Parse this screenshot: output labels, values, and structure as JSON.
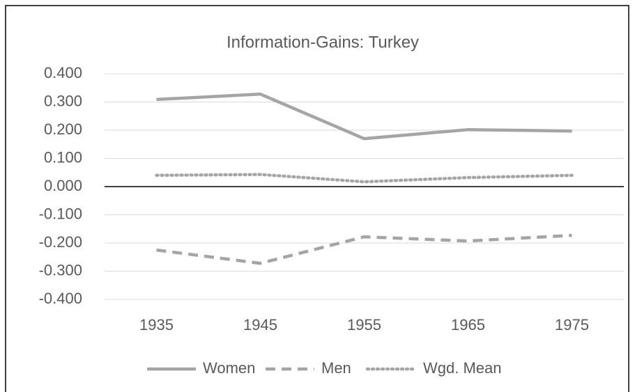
{
  "chart_data": {
    "type": "line",
    "title": "Information-Gains: Turkey",
    "categories": [
      "1935",
      "1945",
      "1955",
      "1965",
      "1975"
    ],
    "series": [
      {
        "name": "Women",
        "color": "#a5a5a5",
        "style": "solid",
        "values": [
          0.309,
          0.328,
          0.17,
          0.202,
          0.197
        ]
      },
      {
        "name": "Men",
        "color": "#a5a5a5",
        "style": "dashed",
        "values": [
          -0.225,
          -0.272,
          -0.178,
          -0.193,
          -0.173
        ]
      },
      {
        "name": "Wgd. Mean",
        "color": "#a5a5a5",
        "style": "dotted",
        "values": [
          0.04,
          0.043,
          0.017,
          0.032,
          0.04
        ]
      }
    ],
    "ylim": [
      -0.4,
      0.4
    ],
    "yticks": [
      {
        "value": -0.4,
        "label": "-0.400"
      },
      {
        "value": -0.3,
        "label": "-0.300"
      },
      {
        "value": -0.2,
        "label": "-0.200"
      },
      {
        "value": -0.1,
        "label": "-0.100"
      },
      {
        "value": 0,
        "label": "0.000"
      },
      {
        "value": 0.1,
        "label": "0.100"
      },
      {
        "value": 0.2,
        "label": "0.200"
      },
      {
        "value": 0.3,
        "label": "0.300"
      },
      {
        "value": 0.4,
        "label": "0.400"
      }
    ],
    "grid": true,
    "legend": "bottom"
  }
}
